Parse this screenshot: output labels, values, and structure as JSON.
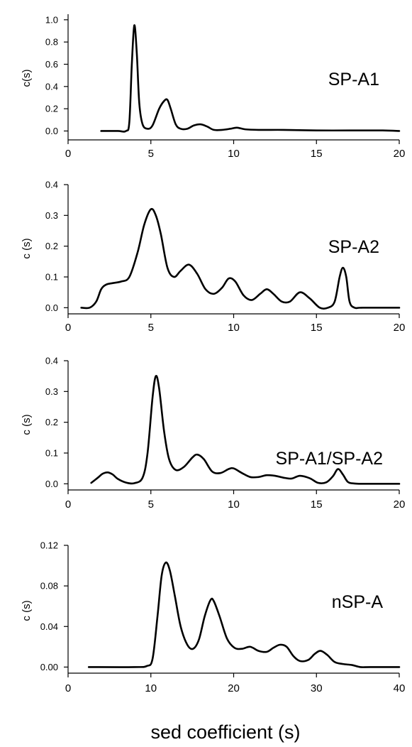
{
  "xlabel": "sed coefficient (s)",
  "chart_data": [
    {
      "type": "line",
      "title": "SP-A1",
      "ylabel": "c(s)",
      "xlim": [
        0,
        20
      ],
      "ylim": [
        -0.08,
        1.05
      ],
      "xticks": [
        "0",
        "5",
        "10",
        "15",
        "20"
      ],
      "yticks": [
        "0.0",
        "0.2",
        "0.4",
        "0.6",
        "0.8",
        "1.0"
      ],
      "x": [
        2.0,
        3.0,
        3.5,
        3.7,
        3.85,
        4.0,
        4.15,
        4.3,
        4.5,
        4.8,
        5.1,
        5.5,
        5.8,
        6.0,
        6.2,
        6.5,
        6.8,
        7.2,
        7.6,
        8.0,
        8.4,
        8.8,
        9.3,
        9.8,
        10.2,
        10.7,
        11.5,
        13.0,
        15.0,
        17.0,
        19.0,
        20.0
      ],
      "y": [
        0.0,
        0.0,
        0.0,
        0.08,
        0.6,
        0.95,
        0.7,
        0.25,
        0.06,
        0.02,
        0.05,
        0.2,
        0.27,
        0.28,
        0.2,
        0.06,
        0.02,
        0.02,
        0.05,
        0.06,
        0.04,
        0.01,
        0.01,
        0.02,
        0.03,
        0.015,
        0.01,
        0.01,
        0.005,
        0.005,
        0.005,
        0.0
      ]
    },
    {
      "type": "line",
      "title": "SP-A2",
      "ylabel": "c (s)",
      "xlim": [
        0,
        20
      ],
      "ylim": [
        -0.02,
        0.4
      ],
      "xticks": [
        "0",
        "5",
        "10",
        "15",
        "20"
      ],
      "yticks": [
        "0.0",
        "0.1",
        "0.2",
        "0.3",
        "0.4"
      ],
      "x": [
        0.8,
        1.3,
        1.7,
        2.0,
        2.3,
        2.7,
        3.2,
        3.7,
        4.2,
        4.6,
        5.0,
        5.3,
        5.6,
        6.0,
        6.4,
        6.8,
        7.3,
        7.8,
        8.3,
        8.8,
        9.3,
        9.7,
        10.1,
        10.6,
        11.1,
        11.6,
        12.0,
        12.4,
        12.9,
        13.4,
        14.0,
        14.6,
        15.2,
        15.7,
        16.1,
        16.4,
        16.6,
        16.8,
        17.0,
        17.3,
        17.8,
        20.0
      ],
      "y": [
        0.0,
        0.0,
        0.02,
        0.06,
        0.075,
        0.08,
        0.085,
        0.1,
        0.18,
        0.27,
        0.32,
        0.3,
        0.24,
        0.13,
        0.1,
        0.12,
        0.14,
        0.11,
        0.06,
        0.045,
        0.065,
        0.095,
        0.085,
        0.04,
        0.025,
        0.045,
        0.06,
        0.045,
        0.02,
        0.02,
        0.05,
        0.03,
        0.0,
        0.0,
        0.02,
        0.1,
        0.13,
        0.1,
        0.02,
        0.0,
        0.0,
        0.0
      ]
    },
    {
      "type": "line",
      "title": "SP-A1/SP-A2",
      "ylabel": "c (s)",
      "xlim": [
        0,
        20
      ],
      "ylim": [
        -0.02,
        0.4
      ],
      "xticks": [
        "0",
        "5",
        "10",
        "15",
        "20"
      ],
      "yticks": [
        "0.0",
        "0.1",
        "0.2",
        "0.3",
        "0.4"
      ],
      "x": [
        1.4,
        1.8,
        2.1,
        2.4,
        2.7,
        3.0,
        3.5,
        4.0,
        4.5,
        4.8,
        5.1,
        5.3,
        5.5,
        5.8,
        6.1,
        6.5,
        7.0,
        7.5,
        7.8,
        8.2,
        8.7,
        9.2,
        9.7,
        10.0,
        10.5,
        11.0,
        11.5,
        12.0,
        12.5,
        13.0,
        13.5,
        14.0,
        14.6,
        15.1,
        15.6,
        16.0,
        16.3,
        16.6,
        16.9,
        17.3,
        18.0,
        20.0
      ],
      "y": [
        0.003,
        0.02,
        0.033,
        0.037,
        0.03,
        0.016,
        0.004,
        0.002,
        0.02,
        0.1,
        0.28,
        0.35,
        0.31,
        0.17,
        0.08,
        0.045,
        0.055,
        0.085,
        0.095,
        0.08,
        0.04,
        0.035,
        0.048,
        0.05,
        0.035,
        0.022,
        0.022,
        0.028,
        0.026,
        0.02,
        0.017,
        0.026,
        0.018,
        0.003,
        0.005,
        0.025,
        0.048,
        0.03,
        0.006,
        0.001,
        0.0,
        0.0
      ]
    },
    {
      "type": "line",
      "title": "nSP-A",
      "ylabel": "c (s)",
      "xlim": [
        0,
        40
      ],
      "ylim": [
        -0.006,
        0.12
      ],
      "xticks": [
        "0",
        "10",
        "20",
        "30",
        "40"
      ],
      "yticks": [
        "0.00",
        "0.04",
        "0.08",
        "0.12"
      ],
      "x": [
        2.5,
        8.0,
        9.5,
        10.2,
        10.8,
        11.3,
        11.8,
        12.3,
        12.9,
        13.6,
        14.4,
        15.1,
        15.8,
        16.5,
        17.2,
        17.6,
        18.3,
        19.2,
        20.1,
        21.0,
        22.0,
        23.0,
        24.0,
        24.8,
        25.6,
        26.4,
        27.2,
        28.0,
        29.0,
        29.8,
        30.5,
        31.3,
        32.2,
        33.2,
        34.3,
        35.3,
        36.5,
        40.0
      ],
      "y": [
        0.0,
        0.0,
        0.001,
        0.008,
        0.05,
        0.09,
        0.103,
        0.095,
        0.07,
        0.04,
        0.022,
        0.018,
        0.027,
        0.05,
        0.066,
        0.065,
        0.05,
        0.028,
        0.019,
        0.018,
        0.02,
        0.016,
        0.015,
        0.019,
        0.022,
        0.02,
        0.011,
        0.006,
        0.007,
        0.013,
        0.016,
        0.012,
        0.005,
        0.003,
        0.002,
        0.0,
        0.0,
        0.0
      ]
    }
  ]
}
